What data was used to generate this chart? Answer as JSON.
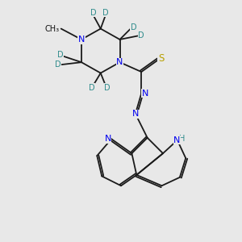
{
  "background_color": "#e8e8e8",
  "bond_color": "#1a1a1a",
  "N_color": "#0000ee",
  "S_color": "#b8a000",
  "D_color": "#2e8b8b",
  "lw": 1.3,
  "fig_width": 3.0,
  "fig_height": 3.0,
  "dpi": 100,
  "xlim": [
    0.0,
    7.0
  ],
  "ylim": [
    1.0,
    11.0
  ]
}
